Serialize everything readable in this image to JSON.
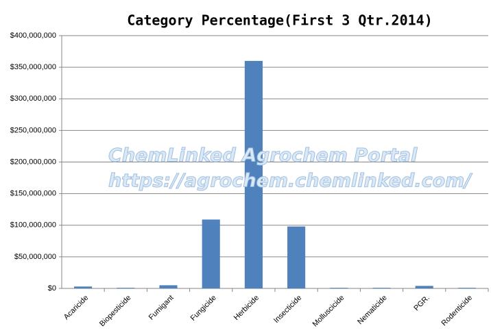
{
  "chart_data": {
    "type": "bar",
    "title": "Category Percentage(First 3 Qtr.2014)",
    "annotations": [
      "ChemLinked Agrochem Portal",
      "https://agrochem.chemlinked.com/"
    ],
    "categories": [
      "Acaricide",
      "Biopesticide",
      "Fumigant",
      "Fungicide",
      "Herbicide",
      "Insecticide",
      "Molluscicide",
      "Nematicide",
      "PGR.",
      "Rodenticide"
    ],
    "values": [
      3000000,
      1000000,
      5000000,
      109000000,
      360000000,
      98000000,
      1000000,
      1000000,
      4000000,
      1000000
    ],
    "color": "#4f81bd",
    "ylim": [
      0,
      400000000
    ],
    "yticks": [
      {
        "value": 0,
        "label": "$0"
      },
      {
        "value": 50000000,
        "label": "$50,000,000"
      },
      {
        "value": 100000000,
        "label": "$100,000,000"
      },
      {
        "value": 150000000,
        "label": "$150,000,000"
      },
      {
        "value": 200000000,
        "label": "$200,000,000"
      },
      {
        "value": 250000000,
        "label": "$250,000,000"
      },
      {
        "value": 300000000,
        "label": "$300,000,000"
      },
      {
        "value": 350000000,
        "label": "$350,000,000"
      },
      {
        "value": 400000000,
        "label": "$400,000,000"
      }
    ],
    "grid": true
  }
}
